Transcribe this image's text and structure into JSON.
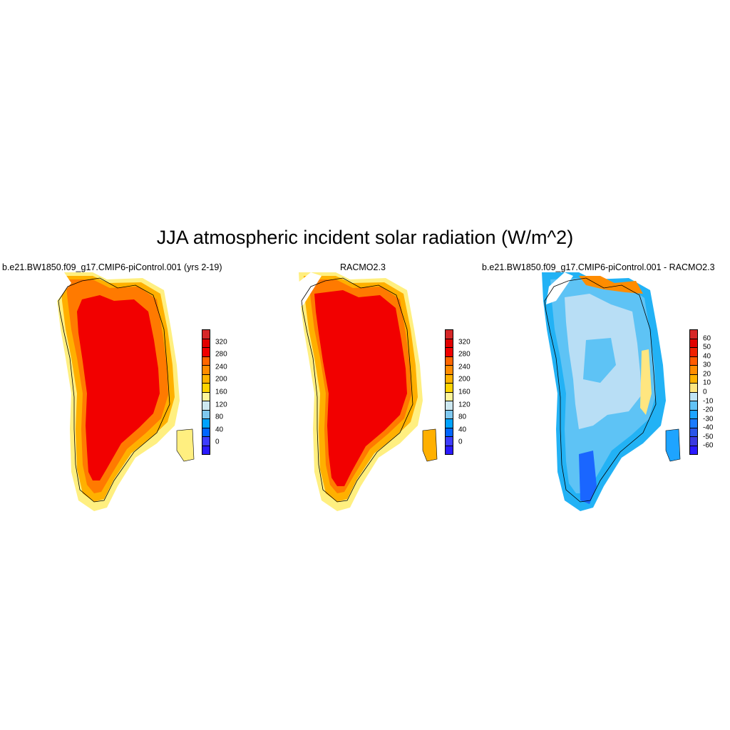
{
  "title": "JJA atmospheric incident solar radiation (W/m^2)",
  "panels": [
    {
      "title": "b.e21.BW1850.f09_g17.CMIP6-piControl.001 (yrs 2-19)",
      "colorbar": {
        "labels": [
          "320",
          "280",
          "240",
          "200",
          "160",
          "120",
          "80",
          "40",
          "0"
        ],
        "colors": [
          "#d62728",
          "#e10000",
          "#f00000",
          "#ff6600",
          "#ff8c00",
          "#ffb300",
          "#ffd400",
          "#fff59a",
          "#cde8f0",
          "#7fc8ef",
          "#00a2ff",
          "#0066ff",
          "#3d3dff",
          "#2a1aff"
        ]
      }
    },
    {
      "title": "RACMO2.3",
      "colorbar": {
        "labels": [
          "320",
          "280",
          "240",
          "200",
          "160",
          "120",
          "80",
          "40",
          "0"
        ],
        "colors": [
          "#d62728",
          "#e10000",
          "#f00000",
          "#ff6600",
          "#ff8c00",
          "#ffb300",
          "#ffd400",
          "#fff59a",
          "#cde8f0",
          "#7fc8ef",
          "#00a2ff",
          "#0066ff",
          "#3d3dff",
          "#2a1aff"
        ]
      }
    },
    {
      "title": "b.e21.BW1850.f09_g17.CMIP6-piControl.001 - RACMO2.3",
      "colorbar": {
        "labels": [
          "60",
          "50",
          "40",
          "30",
          "20",
          "10",
          "0",
          "-10",
          "-20",
          "-30",
          "-40",
          "-50",
          "-60"
        ],
        "colors": [
          "#d62728",
          "#e10000",
          "#f02000",
          "#ff5a00",
          "#ff8c00",
          "#ffb300",
          "#ffe680",
          "#bfe3f5",
          "#62c2f5",
          "#1ea4ff",
          "#1a7bff",
          "#2a55e8",
          "#3a3ae0",
          "#2a1aff"
        ]
      }
    }
  ],
  "colors": {
    "ice_core": "#f20000",
    "ring_orange": "#ff7a00",
    "ring_amber": "#ffb000",
    "ring_yellow": "#ffef80",
    "diff_lightblue": "#b8def5",
    "diff_blue": "#5ec3f5",
    "diff_cyan": "#22b2f5",
    "diff_dark": "#1a66ff"
  }
}
